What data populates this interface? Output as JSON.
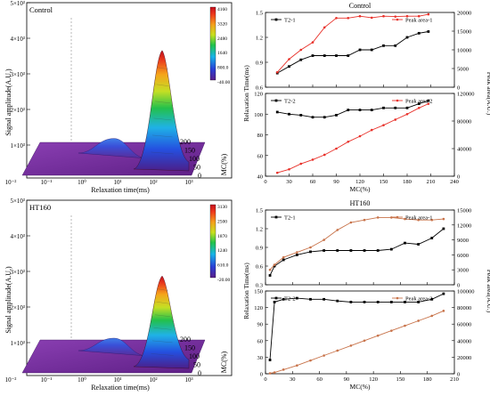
{
  "figure": {
    "top_label": "Control",
    "bottom_label": "HT160"
  },
  "chart_data": [
    {
      "id": "surface-control",
      "type": "area",
      "panel_label": "Control",
      "ylabel": "Signal amplitude(A.U.)",
      "xlabel": "Relaxation time(ms)",
      "zlabel": "MC(%)",
      "log_x": true,
      "x_ticks": [
        "10⁻²",
        "10⁻¹",
        "10⁰",
        "10¹",
        "10²",
        "10³"
      ],
      "y_ticks": [
        "5×10³",
        "4×10³",
        "3×10³",
        "2×10³",
        "1×10³"
      ],
      "mc_ticks": [
        "0",
        "50",
        "100",
        "150",
        "200"
      ],
      "colorbar": {
        "ticks": [
          "4160",
          "3320",
          "2480",
          "1640",
          "800.0",
          "-40.00"
        ],
        "min": -40,
        "max": 4160
      },
      "peaks": [
        {
          "relaxation_time_ms": 0.6,
          "amplitude": 600
        },
        {
          "relaxation_time_ms": 50,
          "amplitude": 4250
        }
      ]
    },
    {
      "id": "surface-ht160",
      "type": "area",
      "panel_label": "HT160",
      "ylabel": "Signal amplitude(A.U.)",
      "xlabel": "Relaxation time(ms)",
      "zlabel": "MC(%)",
      "log_x": true,
      "x_ticks": [
        "10⁻²",
        "10⁻¹",
        "10⁰",
        "10¹",
        "10²",
        "10³"
      ],
      "y_ticks": [
        "5×10³",
        "4×10³",
        "3×10³",
        "2×10³",
        "1×10³"
      ],
      "mc_ticks": [
        "0",
        "50",
        "100",
        "150",
        "200"
      ],
      "colorbar": {
        "ticks": [
          "3130",
          "2500",
          "1870",
          "1240",
          "610.0",
          "-20.00"
        ],
        "min": -20,
        "max": 3130
      },
      "peaks": [
        {
          "relaxation_time_ms": 0.6,
          "amplitude": 500
        },
        {
          "relaxation_time_ms": 50,
          "amplitude": 3300
        }
      ]
    },
    {
      "id": "line-control",
      "type": "line",
      "title": "Control",
      "xlabel": "MC(%)",
      "ylabel": "Relaxation Time(ms)",
      "y2label": "Peak area(A.U.)",
      "xlim": [
        0,
        240
      ],
      "x_ticks": [
        "0",
        "30",
        "60",
        "90",
        "120",
        "150",
        "180",
        "210",
        "240"
      ],
      "top": {
        "ylim": [
          0.6,
          1.5
        ],
        "y_ticks": [
          "0.6",
          "0.9",
          "1.2",
          "1.5"
        ],
        "y2lim": [
          0,
          20000
        ],
        "y2_ticks": [
          "0",
          "5000",
          "10000",
          "15000",
          "20000"
        ],
        "series": [
          {
            "name": "T2-1",
            "axis": "left",
            "color": "#000000",
            "x": [
              15,
              30,
              45,
              60,
              75,
              90,
              105,
              120,
              135,
              150,
              165,
              180,
              195,
              207
            ],
            "values": [
              0.77,
              0.85,
              0.93,
              0.98,
              0.98,
              0.98,
              0.98,
              1.05,
              1.05,
              1.1,
              1.1,
              1.2,
              1.25,
              1.27
            ]
          },
          {
            "name": "Peak area-1",
            "axis": "right",
            "color": "#e8312a",
            "x": [
              15,
              30,
              45,
              60,
              75,
              90,
              105,
              120,
              135,
              150,
              165,
              180,
              195,
              207
            ],
            "values": [
              4000,
              7500,
              10000,
              12000,
              16000,
              18500,
              18500,
              19000,
              18600,
              19000,
              18900,
              19000,
              19000,
              19500
            ]
          }
        ]
      },
      "bottom": {
        "ylim": [
          40,
          120
        ],
        "y_ticks": [
          "40",
          "60",
          "80",
          "100",
          "120"
        ],
        "y2lim": [
          0,
          120000
        ],
        "y2_ticks": [
          "0",
          "40000",
          "80000",
          "120000"
        ],
        "series": [
          {
            "name": "T2-2",
            "axis": "left",
            "color": "#000000",
            "x": [
              15,
              30,
              45,
              60,
              75,
              90,
              105,
              120,
              135,
              150,
              165,
              180,
              195,
              207
            ],
            "values": [
              102,
              100,
              99,
              97,
              97,
              99,
              104,
              104,
              104,
              106,
              106,
              106,
              110,
              113
            ]
          },
          {
            "name": "Peak area-2",
            "axis": "right",
            "color": "#e8312a",
            "x": [
              15,
              30,
              45,
              60,
              75,
              90,
              105,
              120,
              135,
              150,
              165,
              180,
              195,
              207
            ],
            "values": [
              5000,
              10000,
              18000,
              24000,
              31000,
              40000,
              50000,
              58000,
              67000,
              74000,
              82000,
              90000,
              99000,
              105000
            ]
          }
        ]
      }
    },
    {
      "id": "line-ht160",
      "type": "line",
      "title": "HT160",
      "xlabel": "MC(%)",
      "ylabel": "Relaxation Time(ms)",
      "y2label": "Peak area(A.U.)",
      "xlim": [
        0,
        210
      ],
      "x_ticks": [
        "0",
        "30",
        "60",
        "90",
        "120",
        "150",
        "180",
        "210"
      ],
      "top": {
        "ylim": [
          0.3,
          1.5
        ],
        "y_ticks": [
          "0.3",
          "0.6",
          "0.9",
          "1.2",
          "1.5"
        ],
        "y2lim": [
          0,
          15000
        ],
        "y2_ticks": [
          "0",
          "3000",
          "6000",
          "9000",
          "12000",
          "15000"
        ],
        "series": [
          {
            "name": "T2-1",
            "axis": "left",
            "color": "#000000",
            "x": [
              5,
              10,
              20,
              35,
              50,
              65,
              80,
              95,
              110,
              125,
              140,
              155,
              170,
              185,
              198
            ],
            "values": [
              0.45,
              0.6,
              0.7,
              0.78,
              0.83,
              0.85,
              0.85,
              0.85,
              0.85,
              0.85,
              0.87,
              0.97,
              0.95,
              1.05,
              1.2
            ]
          },
          {
            "name": "Peak area-1",
            "axis": "right",
            "color": "#c8734a",
            "x": [
              5,
              10,
              20,
              35,
              50,
              65,
              80,
              95,
              110,
              125,
              140,
              155,
              170,
              185,
              198
            ],
            "values": [
              3000,
              4000,
              5500,
              6500,
              7500,
              9000,
              11000,
              12500,
              13000,
              13500,
              13500,
              13200,
              13000,
              13000,
              13200
            ]
          }
        ]
      },
      "bottom": {
        "ylim": [
          0,
          150
        ],
        "y_ticks": [
          "0",
          "30",
          "60",
          "90",
          "120",
          "150"
        ],
        "y2lim": [
          0,
          100000
        ],
        "y2_ticks": [
          "0",
          "20000",
          "40000",
          "60000",
          "80000",
          "100000"
        ],
        "series": [
          {
            "name": "T2-2",
            "axis": "left",
            "color": "#000000",
            "x": [
              5,
              10,
              20,
              35,
              50,
              65,
              80,
              95,
              110,
              125,
              140,
              155,
              170,
              185,
              198
            ],
            "values": [
              25,
              130,
              135,
              137,
              135,
              135,
              132,
              130,
              130,
              130,
              130,
              130,
              130,
              135,
              145
            ]
          },
          {
            "name": "Peak area-2",
            "axis": "right",
            "color": "#c8734a",
            "x": [
              5,
              10,
              20,
              35,
              50,
              65,
              80,
              95,
              110,
              125,
              140,
              155,
              170,
              185,
              198
            ],
            "values": [
              500,
              1500,
              5000,
              10000,
              16000,
              22000,
              28000,
              34000,
              40000,
              46000,
              52000,
              58000,
              64000,
              70000,
              76000
            ]
          }
        ]
      }
    }
  ]
}
